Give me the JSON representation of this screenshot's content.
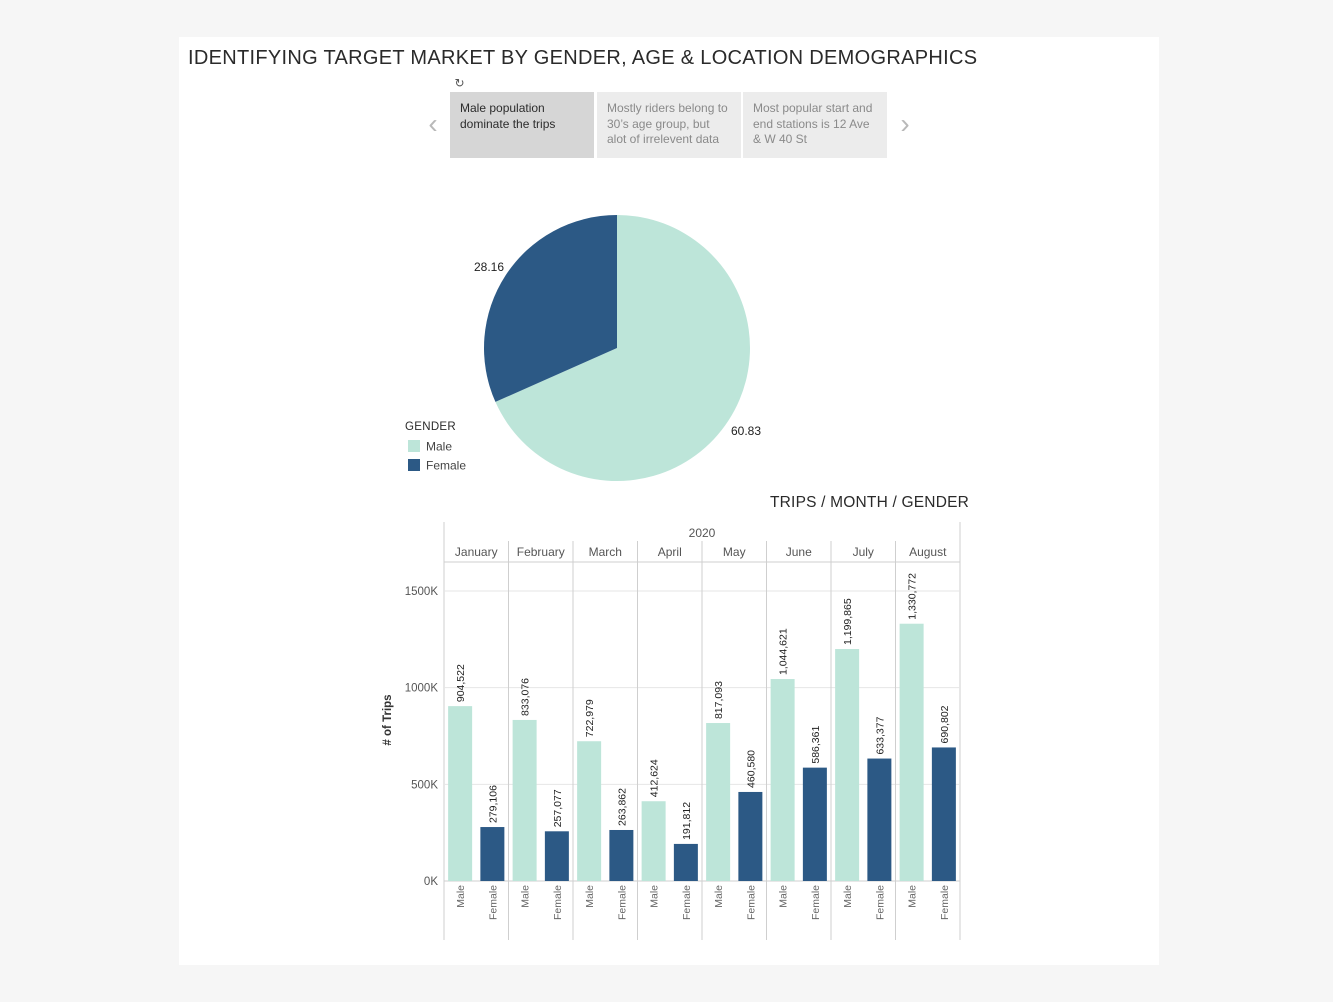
{
  "dashboard": {
    "title": "IDENTIFYING TARGET MARKET BY GENDER, AGE & LOCATION DEMOGRAPHICS",
    "revert_icon": "revert-icon",
    "story_points": [
      {
        "text": "Male population dominate the trips",
        "active": true
      },
      {
        "text": "Mostly riders belong to 30’s age group, but alot of irrelevent data",
        "active": false
      },
      {
        "text": "Most popular start and end stations is 12 Ave & W 40 St",
        "active": false
      }
    ],
    "prev_icon": "chevron-left-icon",
    "next_icon": "chevron-right-icon"
  },
  "colors": {
    "male": "#bde5d9",
    "female": "#2c5985",
    "grid": "#e6e6e6",
    "divider": "#cfcfcf"
  },
  "chart_data": [
    {
      "type": "pie",
      "legend_title": "GENDER",
      "legend_placement": "bottom-left",
      "categories": [
        "Male",
        "Female"
      ],
      "values": [
        60.83,
        28.16
      ],
      "labels": [
        "60.83",
        "28.16"
      ]
    },
    {
      "type": "bar",
      "title": "TRIPS / MONTH / GENDER",
      "year": "2020",
      "categories": [
        "January",
        "February",
        "March",
        "April",
        "May",
        "June",
        "July",
        "August"
      ],
      "series": [
        {
          "name": "Male",
          "values": [
            904522,
            833076,
            722979,
            412624,
            817093,
            1044621,
            1199865,
            1330772
          ],
          "labels": [
            "904,522",
            "833,076",
            "722,979",
            "412,624",
            "817,093",
            "1,044,621",
            "1,199,865",
            "1,330,772"
          ]
        },
        {
          "name": "Female",
          "values": [
            279106,
            257077,
            263862,
            191812,
            460580,
            586361,
            633377,
            690802
          ],
          "labels": [
            "279,106",
            "257,077",
            "263,862",
            "191,812",
            "460,580",
            "586,361",
            "633,377",
            "690,802"
          ]
        }
      ],
      "ylabel": "# of Trips",
      "ylim": [
        0,
        1650000
      ],
      "yticks": [
        0,
        500000,
        1000000,
        1500000
      ],
      "ytick_labels": [
        "0K",
        "500K",
        "1000K",
        "1500K"
      ],
      "grid": true
    }
  ]
}
